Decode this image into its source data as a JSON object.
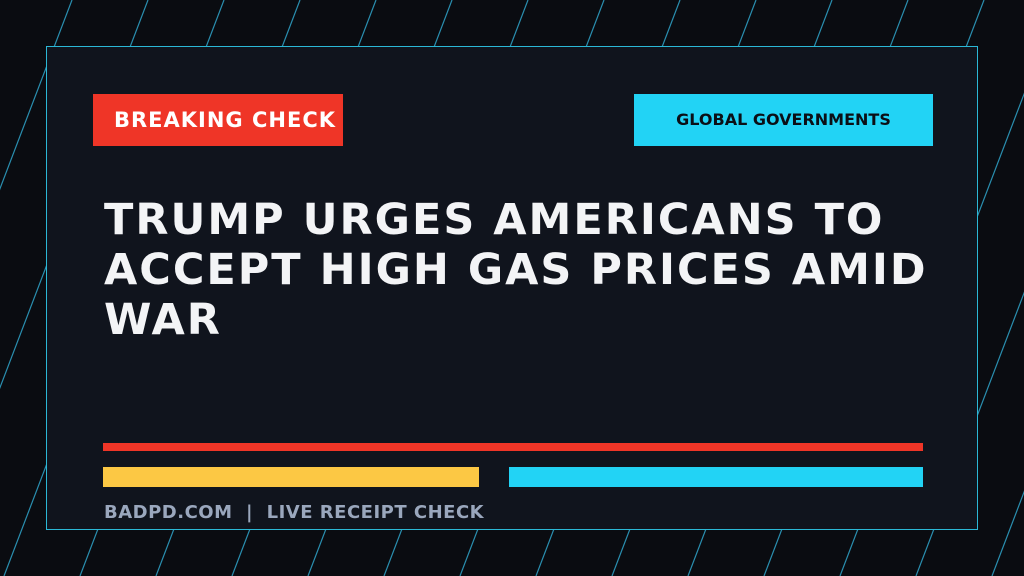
{
  "badge": {
    "label": "BREAKING CHECK"
  },
  "category": {
    "label": "GLOBAL GOVERNMENTS"
  },
  "headline": "TRUMP URGES AMERICANS TO ACCEPT HIGH GAS PRICES AMID WAR",
  "footer": "BADPD.COM  |  LIVE RECEIPT CHECK"
}
